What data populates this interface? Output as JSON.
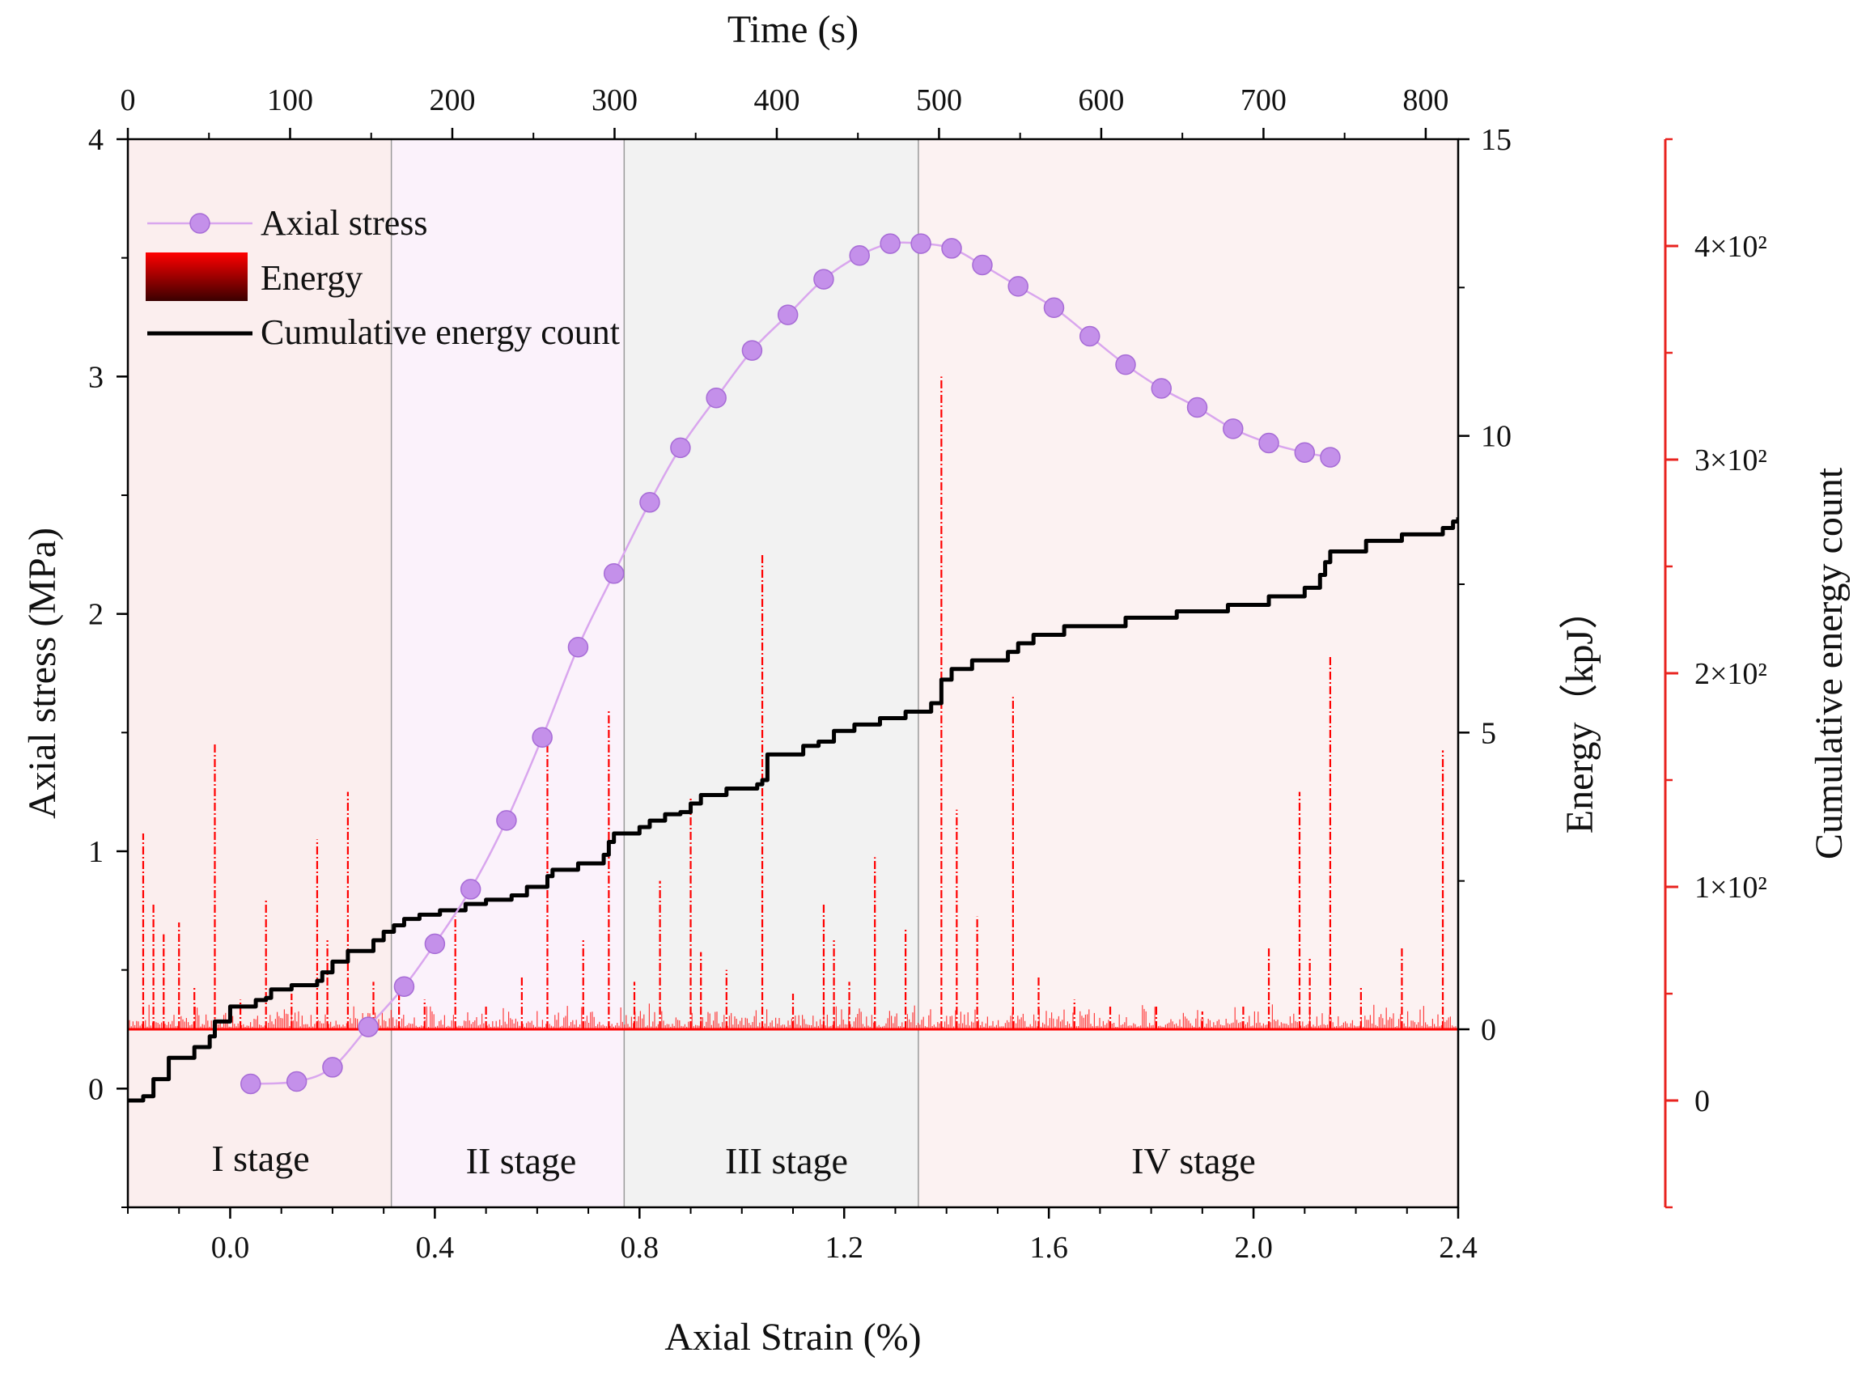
{
  "chart_data": {
    "type": "line",
    "xlabel": "Axial Strain (%)",
    "x_top_label": "Time (s)",
    "ylabel_left": "Axial stress (MPa)",
    "ylabel_right": "Energy（kpJ）",
    "ylabel_right2": "Cumulative energy count",
    "xlim": [
      -0.2,
      2.4
    ],
    "x_ticks": [
      "0.0",
      "0.4",
      "0.8",
      "1.2",
      "1.6",
      "2.0",
      "2.4"
    ],
    "x_tick_values": [
      0.0,
      0.4,
      0.8,
      1.2,
      1.6,
      2.0,
      2.4
    ],
    "time_ticks": [
      "0",
      "100",
      "200",
      "300",
      "400",
      "500",
      "600",
      "700",
      "800"
    ],
    "time_tick_values": [
      0,
      100,
      200,
      300,
      400,
      500,
      600,
      700,
      800
    ],
    "time_lim": [
      0,
      820
    ],
    "ylim_left": [
      -0.5,
      4
    ],
    "y_left_ticks": [
      "0",
      "1",
      "2",
      "3",
      "4"
    ],
    "y_left_tick_values": [
      0,
      1,
      2,
      3,
      4
    ],
    "ylim_energy": [
      -3,
      15
    ],
    "y_energy_ticks": [
      "0",
      "5",
      "10",
      "15"
    ],
    "y_energy_tick_values": [
      0,
      5,
      10,
      15
    ],
    "ylim_cumulative": [
      -50,
      450
    ],
    "y_cumulative_ticks": [
      "0",
      "1×10²",
      "2×10²",
      "3×10²",
      "4×10²"
    ],
    "y_cumulative_tick_values": [
      0,
      100,
      200,
      300,
      400
    ],
    "stages": [
      {
        "label": "I stage",
        "x_start": -0.2,
        "x_end": 0.315,
        "color": "#fbeeee"
      },
      {
        "label": "II stage",
        "x_start": 0.315,
        "x_end": 0.77,
        "color": "#fbf2fb"
      },
      {
        "label": "III stage",
        "x_start": 0.77,
        "x_end": 1.345,
        "color": "#f2f2f2"
      },
      {
        "label": "IV stage",
        "x_start": 1.345,
        "x_end": 2.4,
        "color": "#fcf2f2"
      }
    ],
    "series": [
      {
        "name": "Axial stress",
        "axis": "left",
        "color": "#b86ee0",
        "x": [
          0.04,
          0.13,
          0.2,
          0.27,
          0.34,
          0.4,
          0.47,
          0.54,
          0.61,
          0.68,
          0.75,
          0.82,
          0.88,
          0.95,
          1.02,
          1.09,
          1.16,
          1.23,
          1.29,
          1.35,
          1.41,
          1.47,
          1.54,
          1.61,
          1.68,
          1.75,
          1.82,
          1.89,
          1.96,
          2.03,
          2.1,
          2.15
        ],
        "values": [
          0.02,
          0.03,
          0.09,
          0.26,
          0.43,
          0.61,
          0.84,
          1.13,
          1.48,
          1.86,
          2.17,
          2.47,
          2.7,
          2.91,
          3.11,
          3.26,
          3.41,
          3.51,
          3.56,
          3.56,
          3.54,
          3.47,
          3.38,
          3.29,
          3.17,
          3.05,
          2.95,
          2.87,
          2.78,
          2.72,
          2.68,
          2.66
        ]
      },
      {
        "name": "Energy",
        "axis": "energy",
        "color": "#ff0000",
        "x": [
          -0.17,
          -0.15,
          -0.13,
          -0.1,
          -0.07,
          -0.03,
          0.02,
          0.07,
          0.12,
          0.17,
          0.19,
          0.23,
          0.28,
          0.33,
          0.38,
          0.44,
          0.5,
          0.57,
          0.62,
          0.69,
          0.74,
          0.79,
          0.84,
          0.9,
          0.92,
          0.97,
          1.04,
          1.1,
          1.16,
          1.18,
          1.21,
          1.26,
          1.32,
          1.39,
          1.42,
          1.46,
          1.53,
          1.58,
          1.65,
          1.72,
          1.81,
          1.9,
          1.98,
          2.03,
          2.09,
          2.11,
          2.15,
          2.21,
          2.29,
          2.37
        ],
        "values": [
          3.3,
          2.1,
          1.6,
          1.8,
          0.7,
          4.8,
          0.5,
          2.2,
          0.6,
          3.2,
          1.5,
          4.0,
          0.8,
          0.6,
          0.5,
          1.9,
          0.4,
          0.9,
          5.0,
          1.5,
          5.4,
          0.8,
          2.5,
          3.9,
          1.3,
          1.0,
          8.0,
          0.6,
          2.1,
          1.5,
          0.8,
          2.9,
          1.7,
          11.0,
          3.7,
          1.9,
          5.6,
          0.9,
          0.5,
          0.4,
          0.4,
          0.3,
          0.4,
          1.4,
          4.0,
          1.2,
          6.3,
          0.7,
          1.4,
          4.7
        ]
      },
      {
        "name": "Cumulative energy count",
        "axis": "cumulative",
        "color": "#000000",
        "x": [
          -0.2,
          -0.17,
          -0.15,
          -0.12,
          -0.07,
          -0.04,
          -0.03,
          0.0,
          0.05,
          0.07,
          0.08,
          0.12,
          0.17,
          0.18,
          0.2,
          0.23,
          0.28,
          0.3,
          0.32,
          0.34,
          0.37,
          0.41,
          0.46,
          0.5,
          0.55,
          0.58,
          0.62,
          0.63,
          0.68,
          0.73,
          0.74,
          0.75,
          0.8,
          0.82,
          0.85,
          0.88,
          0.9,
          0.92,
          0.97,
          1.03,
          1.04,
          1.05,
          1.12,
          1.15,
          1.18,
          1.22,
          1.27,
          1.32,
          1.37,
          1.39,
          1.39,
          1.41,
          1.45,
          1.52,
          1.54,
          1.57,
          1.63,
          1.75,
          1.85,
          1.95,
          2.03,
          2.1,
          2.13,
          2.14,
          2.15,
          2.22,
          2.29,
          2.37,
          2.39,
          2.4
        ],
        "values": [
          0,
          2,
          10,
          20,
          25,
          30,
          37,
          44,
          47,
          48,
          52,
          54,
          56,
          60,
          65,
          70,
          75,
          79,
          82,
          85,
          87,
          89,
          92,
          94,
          96,
          100,
          105,
          108,
          111,
          115,
          121,
          125,
          128,
          131,
          134,
          135,
          139,
          143,
          146,
          148,
          150,
          162,
          166,
          168,
          173,
          176,
          179,
          182,
          186,
          187,
          197,
          202,
          206,
          210,
          214,
          218,
          222,
          226,
          229,
          232,
          236,
          240,
          246,
          252,
          257,
          262,
          265,
          268,
          271,
          273
        ]
      }
    ],
    "legend": [
      {
        "label": "Axial stress",
        "kind": "marker-line"
      },
      {
        "label": "Energy",
        "kind": "patch"
      },
      {
        "label": "Cumulative energy count",
        "kind": "line"
      }
    ],
    "legend_position": "top-left",
    "colors": {
      "stress": "#b86ee0",
      "stress_marker": "#c490ea",
      "energy": "#ff0000",
      "cumulative": "#000000",
      "right_axis2": "#e8231f",
      "stage_divider": "#9a9a9a"
    }
  }
}
